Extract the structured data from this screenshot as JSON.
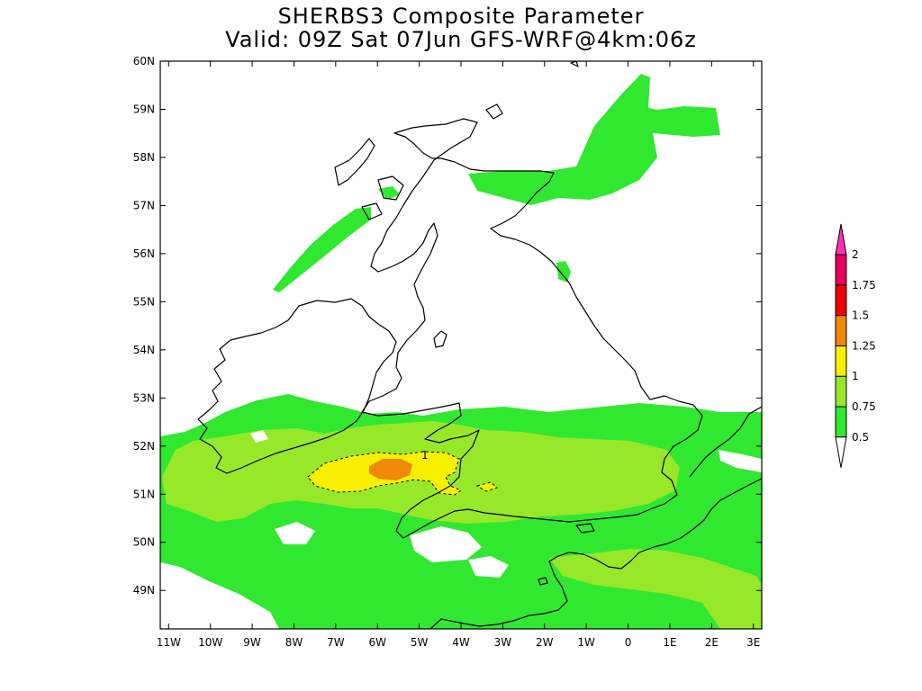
{
  "title": {
    "line1": "SHERBS3 Composite Parameter",
    "line2": "Valid: 09Z Sat 07Jun GFS-WRF@4km:06z"
  },
  "map": {
    "lon_range": [
      -11.2,
      3.2
    ],
    "lat_range": [
      48.2,
      60.0
    ],
    "lon_ticks": [
      {
        "value": -11,
        "label": "11W"
      },
      {
        "value": -10,
        "label": "10W"
      },
      {
        "value": -9,
        "label": "9W"
      },
      {
        "value": -8,
        "label": "8W"
      },
      {
        "value": -7,
        "label": "7W"
      },
      {
        "value": -6,
        "label": "6W"
      },
      {
        "value": -5,
        "label": "5W"
      },
      {
        "value": -4,
        "label": "4W"
      },
      {
        "value": -3,
        "label": "3W"
      },
      {
        "value": -2,
        "label": "2W"
      },
      {
        "value": -1,
        "label": "1W"
      },
      {
        "value": 0,
        "label": "0"
      },
      {
        "value": 1,
        "label": "1E"
      },
      {
        "value": 2,
        "label": "2E"
      },
      {
        "value": 3,
        "label": "3E"
      }
    ],
    "lat_ticks": [
      {
        "value": 60,
        "label": "60N"
      },
      {
        "value": 59,
        "label": "59N"
      },
      {
        "value": 58,
        "label": "58N"
      },
      {
        "value": 57,
        "label": "57N"
      },
      {
        "value": 56,
        "label": "56N"
      },
      {
        "value": 55,
        "label": "55N"
      },
      {
        "value": 54,
        "label": "54N"
      },
      {
        "value": 53,
        "label": "53N"
      },
      {
        "value": 52,
        "label": "52N"
      },
      {
        "value": 51,
        "label": "51N"
      },
      {
        "value": 50,
        "label": "50N"
      },
      {
        "value": 49,
        "label": "49N"
      }
    ],
    "contour_label": "1"
  },
  "legend": {
    "levels": [
      "0.5",
      "0.75",
      "1",
      "1.25",
      "1.5",
      "1.75",
      "2"
    ],
    "colors": [
      "#30e830",
      "#98e82a",
      "#f8f000",
      "#f08808",
      "#f00000",
      "#e8005a",
      "#ff30b8"
    ],
    "below_color": "#ffffff"
  }
}
